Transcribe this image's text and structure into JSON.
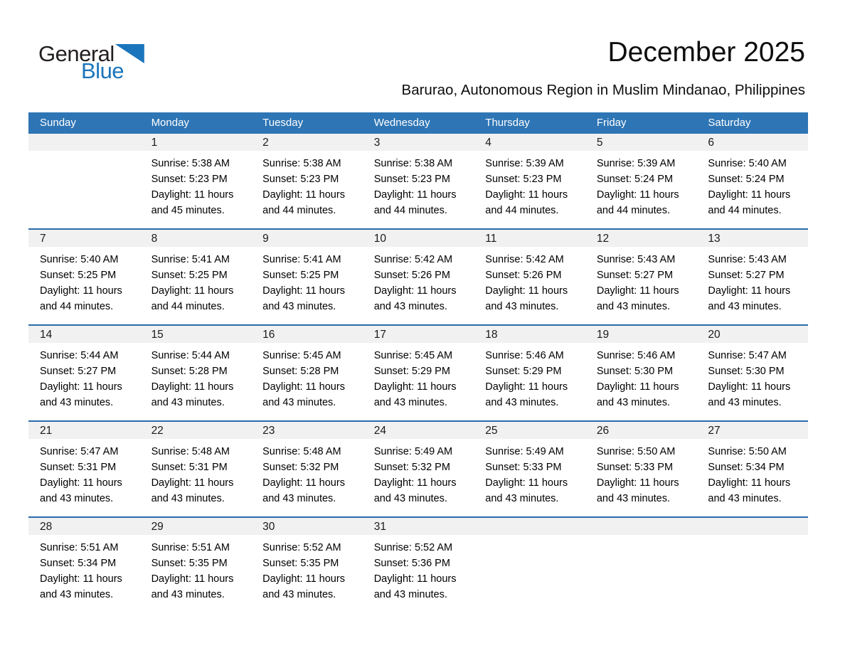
{
  "logo": {
    "part1": "General",
    "part2": "Blue",
    "triangle_color": "#1b75bc"
  },
  "header": {
    "title": "December 2025",
    "subtitle": "Barurao, Autonomous Region in Muslim Mindanao, Philippines"
  },
  "calendar": {
    "colors": {
      "header_bg": "#2e75b5",
      "row_border": "#2a6cad",
      "date_band_bg": "#f1f1f1"
    },
    "day_headers": [
      "Sunday",
      "Monday",
      "Tuesday",
      "Wednesday",
      "Thursday",
      "Friday",
      "Saturday"
    ],
    "labels": {
      "sunrise": "Sunrise:",
      "sunset": "Sunset:",
      "daylight": "Daylight:"
    },
    "weeks": [
      [
        null,
        {
          "date": "1",
          "sunrise": "5:38 AM",
          "sunset": "5:23 PM",
          "daylight": "11 hours and 45 minutes."
        },
        {
          "date": "2",
          "sunrise": "5:38 AM",
          "sunset": "5:23 PM",
          "daylight": "11 hours and 44 minutes."
        },
        {
          "date": "3",
          "sunrise": "5:38 AM",
          "sunset": "5:23 PM",
          "daylight": "11 hours and 44 minutes."
        },
        {
          "date": "4",
          "sunrise": "5:39 AM",
          "sunset": "5:23 PM",
          "daylight": "11 hours and 44 minutes."
        },
        {
          "date": "5",
          "sunrise": "5:39 AM",
          "sunset": "5:24 PM",
          "daylight": "11 hours and 44 minutes."
        },
        {
          "date": "6",
          "sunrise": "5:40 AM",
          "sunset": "5:24 PM",
          "daylight": "11 hours and 44 minutes."
        }
      ],
      [
        {
          "date": "7",
          "sunrise": "5:40 AM",
          "sunset": "5:25 PM",
          "daylight": "11 hours and 44 minutes."
        },
        {
          "date": "8",
          "sunrise": "5:41 AM",
          "sunset": "5:25 PM",
          "daylight": "11 hours and 44 minutes."
        },
        {
          "date": "9",
          "sunrise": "5:41 AM",
          "sunset": "5:25 PM",
          "daylight": "11 hours and 43 minutes."
        },
        {
          "date": "10",
          "sunrise": "5:42 AM",
          "sunset": "5:26 PM",
          "daylight": "11 hours and 43 minutes."
        },
        {
          "date": "11",
          "sunrise": "5:42 AM",
          "sunset": "5:26 PM",
          "daylight": "11 hours and 43 minutes."
        },
        {
          "date": "12",
          "sunrise": "5:43 AM",
          "sunset": "5:27 PM",
          "daylight": "11 hours and 43 minutes."
        },
        {
          "date": "13",
          "sunrise": "5:43 AM",
          "sunset": "5:27 PM",
          "daylight": "11 hours and 43 minutes."
        }
      ],
      [
        {
          "date": "14",
          "sunrise": "5:44 AM",
          "sunset": "5:27 PM",
          "daylight": "11 hours and 43 minutes."
        },
        {
          "date": "15",
          "sunrise": "5:44 AM",
          "sunset": "5:28 PM",
          "daylight": "11 hours and 43 minutes."
        },
        {
          "date": "16",
          "sunrise": "5:45 AM",
          "sunset": "5:28 PM",
          "daylight": "11 hours and 43 minutes."
        },
        {
          "date": "17",
          "sunrise": "5:45 AM",
          "sunset": "5:29 PM",
          "daylight": "11 hours and 43 minutes."
        },
        {
          "date": "18",
          "sunrise": "5:46 AM",
          "sunset": "5:29 PM",
          "daylight": "11 hours and 43 minutes."
        },
        {
          "date": "19",
          "sunrise": "5:46 AM",
          "sunset": "5:30 PM",
          "daylight": "11 hours and 43 minutes."
        },
        {
          "date": "20",
          "sunrise": "5:47 AM",
          "sunset": "5:30 PM",
          "daylight": "11 hours and 43 minutes."
        }
      ],
      [
        {
          "date": "21",
          "sunrise": "5:47 AM",
          "sunset": "5:31 PM",
          "daylight": "11 hours and 43 minutes."
        },
        {
          "date": "22",
          "sunrise": "5:48 AM",
          "sunset": "5:31 PM",
          "daylight": "11 hours and 43 minutes."
        },
        {
          "date": "23",
          "sunrise": "5:48 AM",
          "sunset": "5:32 PM",
          "daylight": "11 hours and 43 minutes."
        },
        {
          "date": "24",
          "sunrise": "5:49 AM",
          "sunset": "5:32 PM",
          "daylight": "11 hours and 43 minutes."
        },
        {
          "date": "25",
          "sunrise": "5:49 AM",
          "sunset": "5:33 PM",
          "daylight": "11 hours and 43 minutes."
        },
        {
          "date": "26",
          "sunrise": "5:50 AM",
          "sunset": "5:33 PM",
          "daylight": "11 hours and 43 minutes."
        },
        {
          "date": "27",
          "sunrise": "5:50 AM",
          "sunset": "5:34 PM",
          "daylight": "11 hours and 43 minutes."
        }
      ],
      [
        {
          "date": "28",
          "sunrise": "5:51 AM",
          "sunset": "5:34 PM",
          "daylight": "11 hours and 43 minutes."
        },
        {
          "date": "29",
          "sunrise": "5:51 AM",
          "sunset": "5:35 PM",
          "daylight": "11 hours and 43 minutes."
        },
        {
          "date": "30",
          "sunrise": "5:52 AM",
          "sunset": "5:35 PM",
          "daylight": "11 hours and 43 minutes."
        },
        {
          "date": "31",
          "sunrise": "5:52 AM",
          "sunset": "5:36 PM",
          "daylight": "11 hours and 43 minutes."
        },
        null,
        null,
        null
      ]
    ]
  }
}
